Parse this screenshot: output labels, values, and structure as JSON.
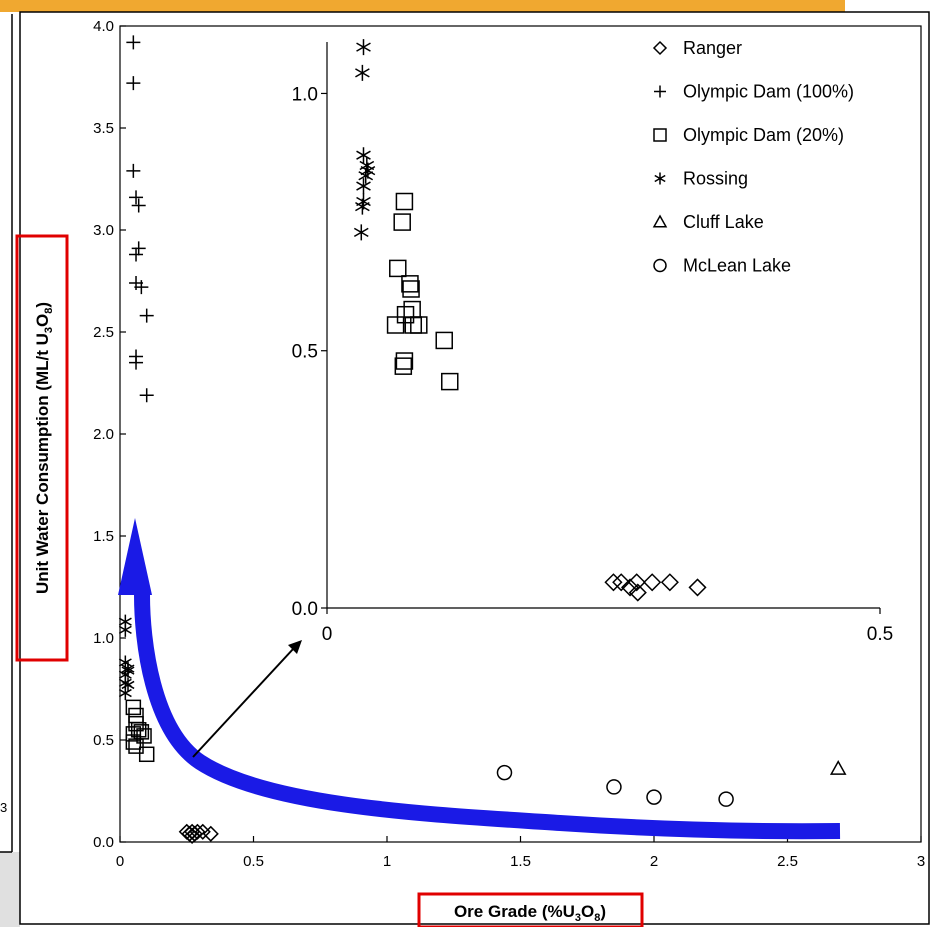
{
  "chart_data": [
    {
      "id": "main",
      "type": "scatter",
      "xlabel_parts": [
        "Ore Grade (%U",
        "3",
        "O",
        "8",
        ")"
      ],
      "ylabel_parts": [
        "Unit Water Consumption (ML/t U",
        "3",
        "O",
        "8",
        ")"
      ],
      "xlim": [
        0,
        3
      ],
      "ylim": [
        0,
        4
      ],
      "x_ticks": [
        "0",
        "0.5",
        "1",
        "1.5",
        "2",
        "2.5",
        "3"
      ],
      "y_ticks": [
        "0.0",
        "0.5",
        "1.0",
        "1.5",
        "2.0",
        "2.5",
        "3.0",
        "3.5",
        "4.0"
      ],
      "series": [
        {
          "name": "Ranger",
          "marker": "diamond",
          "points": [
            [
              0.25,
              0.05
            ],
            [
              0.26,
              0.04
            ],
            [
              0.27,
              0.05
            ],
            [
              0.27,
              0.03
            ],
            [
              0.28,
              0.04
            ],
            [
              0.29,
              0.05
            ],
            [
              0.31,
              0.05
            ],
            [
              0.34,
              0.04
            ]
          ]
        },
        {
          "name": "Olympic Dam (100%)",
          "marker": "plus",
          "points": [
            [
              0.05,
              3.92
            ],
            [
              0.05,
              3.72
            ],
            [
              0.05,
              3.29
            ],
            [
              0.06,
              3.16
            ],
            [
              0.07,
              3.12
            ],
            [
              0.07,
              2.91
            ],
            [
              0.06,
              2.88
            ],
            [
              0.06,
              2.74
            ],
            [
              0.08,
              2.72
            ],
            [
              0.1,
              2.58
            ],
            [
              0.06,
              2.38
            ],
            [
              0.06,
              2.35
            ],
            [
              0.1,
              2.19
            ]
          ]
        },
        {
          "name": "Olympic Dam (20%)",
          "marker": "square",
          "points": [
            [
              0.05,
              0.66
            ],
            [
              0.06,
              0.62
            ],
            [
              0.06,
              0.58
            ],
            [
              0.07,
              0.55
            ],
            [
              0.05,
              0.53
            ],
            [
              0.08,
              0.54
            ],
            [
              0.06,
              0.47
            ],
            [
              0.05,
              0.49
            ],
            [
              0.09,
              0.52
            ],
            [
              0.1,
              0.43
            ]
          ]
        },
        {
          "name": "Rossing",
          "marker": "asterisk",
          "points": [
            [
              0.02,
              1.08
            ],
            [
              0.02,
              1.04
            ],
            [
              0.02,
              0.88
            ],
            [
              0.03,
              0.85
            ],
            [
              0.03,
              0.84
            ],
            [
              0.02,
              0.82
            ],
            [
              0.02,
              0.78
            ],
            [
              0.03,
              0.77
            ],
            [
              0.02,
              0.73
            ]
          ]
        },
        {
          "name": "Cluff Lake",
          "marker": "triangle",
          "points": [
            [
              2.69,
              0.36
            ]
          ]
        },
        {
          "name": "McLean Lake",
          "marker": "circle",
          "points": [
            [
              1.44,
              0.34
            ],
            [
              1.85,
              0.27
            ],
            [
              2.0,
              0.22
            ],
            [
              2.27,
              0.21
            ]
          ]
        }
      ],
      "annotation": {
        "type": "trend-arrow",
        "color": "#1a1ae6"
      }
    },
    {
      "id": "inset",
      "type": "scatter",
      "xlim": [
        0,
        0.5
      ],
      "ylim": [
        0,
        1.1
      ],
      "x_ticks": [
        "0",
        "0.5"
      ],
      "y_ticks": [
        "0.0",
        "0.5",
        "1.0"
      ],
      "legend_position": "top-right",
      "series": [
        {
          "name": "Ranger",
          "marker": "diamond",
          "points": [
            [
              0.259,
              0.05
            ],
            [
              0.266,
              0.05
            ],
            [
              0.274,
              0.04
            ],
            [
              0.281,
              0.03
            ],
            [
              0.28,
              0.05
            ],
            [
              0.294,
              0.05
            ],
            [
              0.31,
              0.05
            ],
            [
              0.335,
              0.04
            ]
          ]
        },
        {
          "name": "Olympic Dam (100%)",
          "marker": "plus",
          "points": []
        },
        {
          "name": "Olympic Dam (20%)",
          "marker": "square",
          "points": [
            [
              0.07,
              0.79
            ],
            [
              0.068,
              0.75
            ],
            [
              0.064,
              0.66
            ],
            [
              0.075,
              0.63
            ],
            [
              0.076,
              0.62
            ],
            [
              0.077,
              0.58
            ],
            [
              0.071,
              0.57
            ],
            [
              0.062,
              0.55
            ],
            [
              0.078,
              0.55
            ],
            [
              0.083,
              0.55
            ],
            [
              0.106,
              0.52
            ],
            [
              0.07,
              0.48
            ],
            [
              0.069,
              0.47
            ],
            [
              0.111,
              0.44
            ]
          ]
        },
        {
          "name": "Rossing",
          "marker": "asterisk",
          "points": [
            [
              0.033,
              1.09
            ],
            [
              0.032,
              1.04
            ],
            [
              0.033,
              0.88
            ],
            [
              0.036,
              0.86
            ],
            [
              0.035,
              0.84
            ],
            [
              0.037,
              0.85
            ],
            [
              0.033,
              0.82
            ],
            [
              0.033,
              0.79
            ],
            [
              0.032,
              0.78
            ],
            [
              0.031,
              0.73
            ]
          ]
        },
        {
          "name": "Cluff Lake",
          "marker": "triangle",
          "points": []
        },
        {
          "name": "McLean Lake",
          "marker": "circle",
          "points": []
        }
      ]
    }
  ],
  "stray_text": "3",
  "colors": {
    "highlight": "#e00000",
    "trend": "#1a1ae6",
    "top_strip": "#f0a830",
    "side_panel": "#e0e0e0"
  }
}
